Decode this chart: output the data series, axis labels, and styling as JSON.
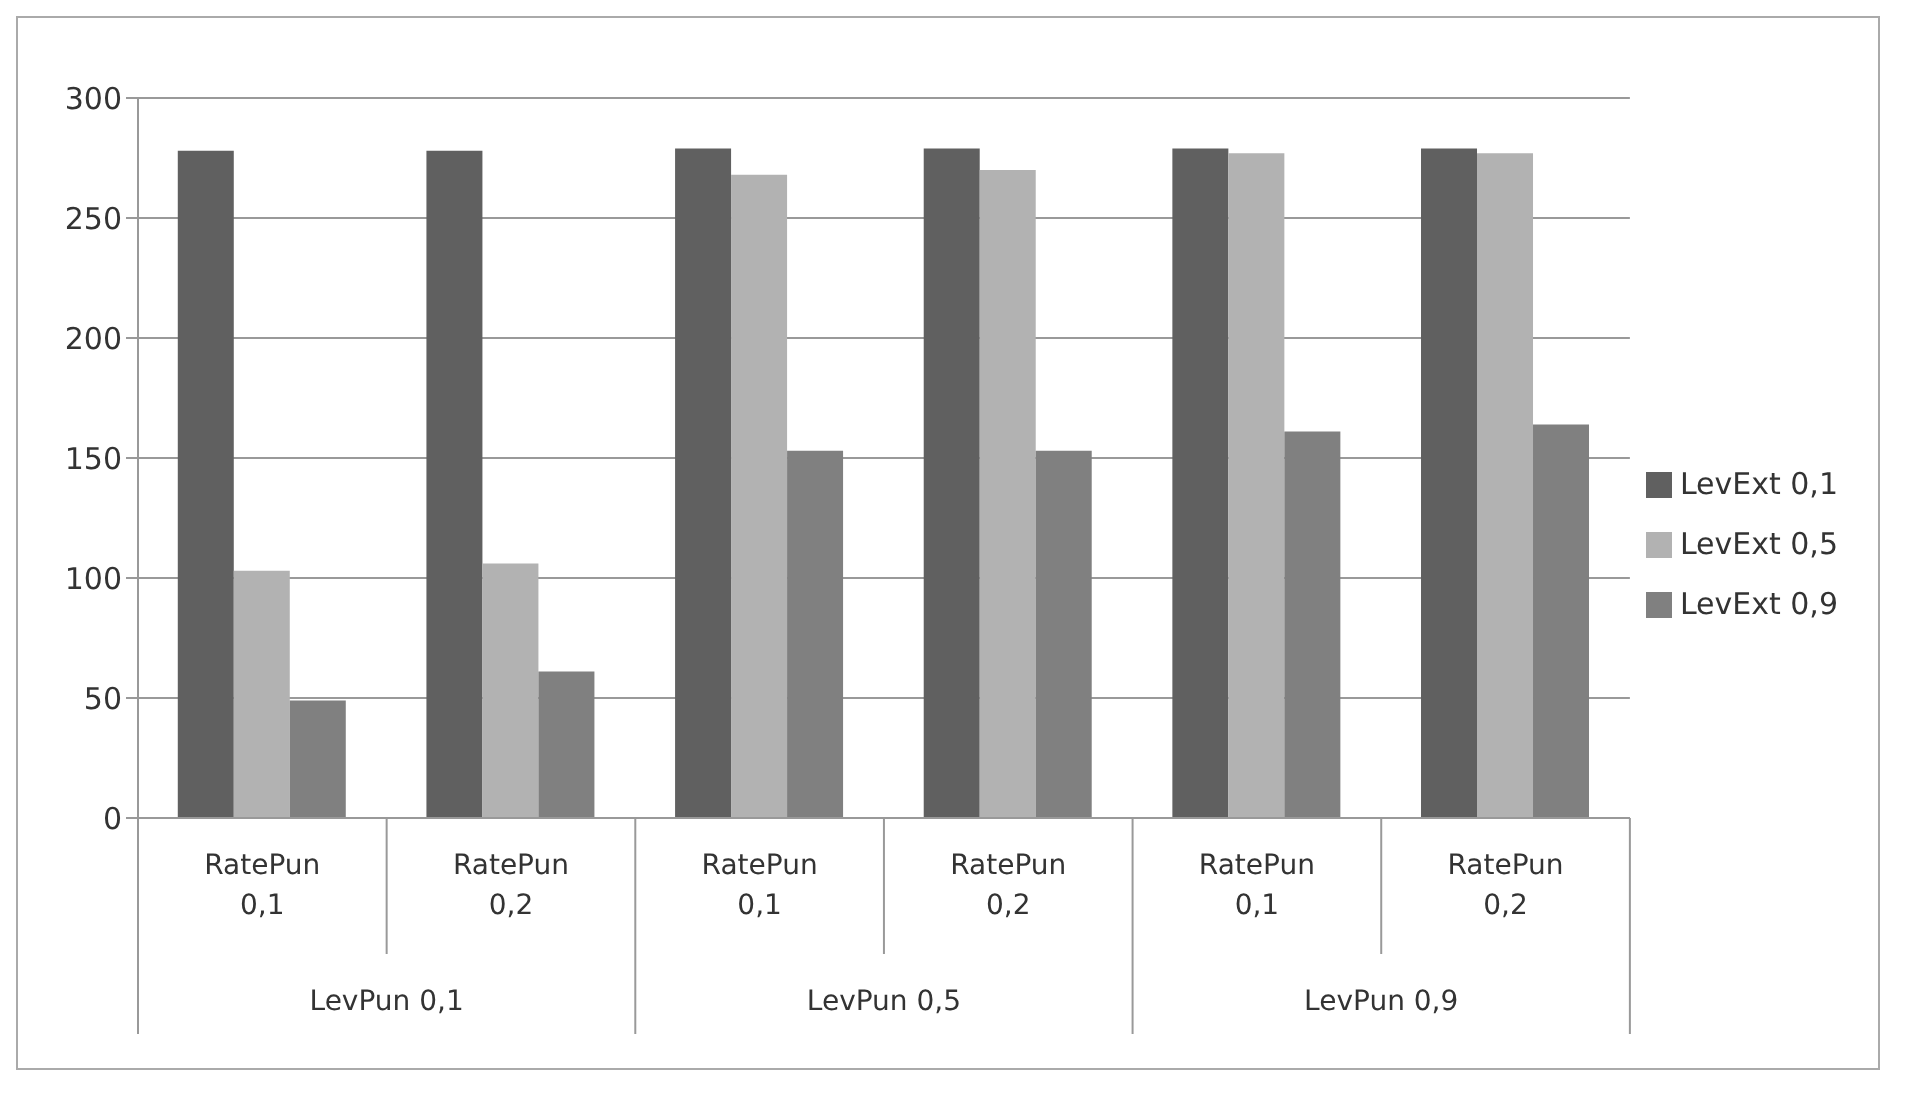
{
  "chart_data": {
    "type": "bar",
    "categories": [
      "RatePun 0,1",
      "RatePun 0,2",
      "RatePun 0,1",
      "RatePun 0,2",
      "RatePun 0,1",
      "RatePun 0,2"
    ],
    "annotations": [
      "LevPun 0,1",
      "LevPun 0,5",
      "LevPun 0,9"
    ],
    "series": [
      {
        "name": "LevExt 0,1",
        "color": "#606060",
        "values": [
          278,
          278,
          279,
          279,
          279,
          279
        ]
      },
      {
        "name": "LevExt 0,5",
        "color": "#b2b2b2",
        "values": [
          103,
          106,
          268,
          270,
          277,
          277
        ]
      },
      {
        "name": "LevExt 0,9",
        "color": "#808080",
        "values": [
          49,
          61,
          153,
          153,
          161,
          164
        ]
      }
    ],
    "ylim": [
      0,
      300
    ],
    "yticks": [
      0,
      50,
      100,
      150,
      200,
      250,
      300
    ],
    "grid": "y",
    "legend": "right"
  }
}
